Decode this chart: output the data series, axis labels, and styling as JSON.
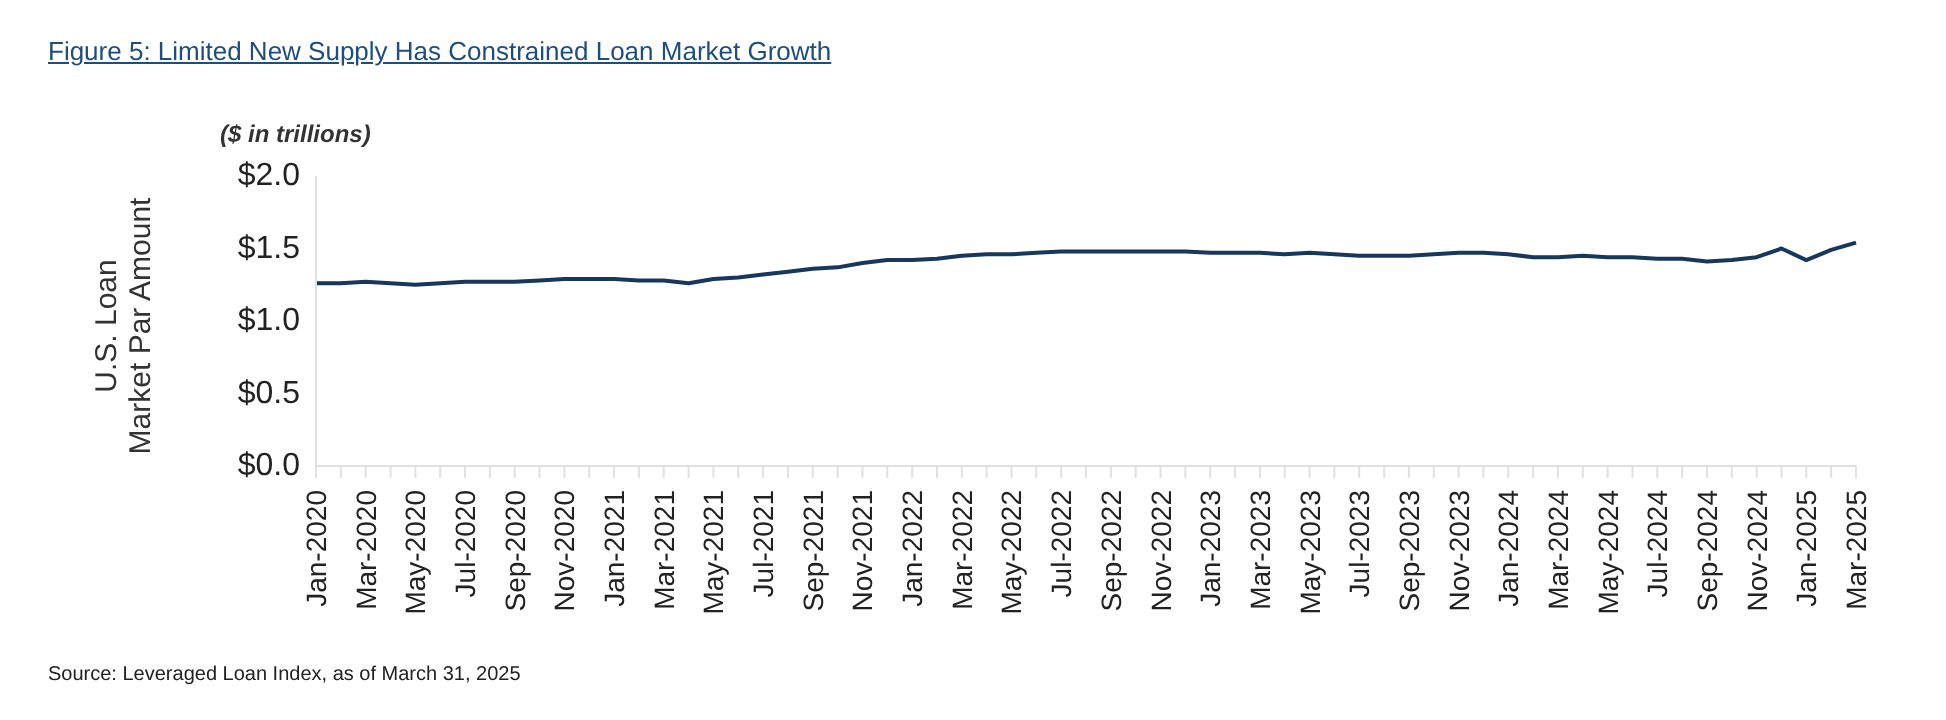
{
  "chart_data": {
    "type": "line",
    "title": "Figure 5: Limited New Supply Has Constrained Loan Market Growth",
    "subtitle": "($ in trillions)",
    "ylabel": "U.S. Loan\nMarket Par Amount",
    "categories": [
      "Jan-2020",
      null,
      "Mar-2020",
      null,
      "May-2020",
      null,
      "Jul-2020",
      null,
      "Sep-2020",
      null,
      "Nov-2020",
      null,
      "Jan-2021",
      null,
      "Mar-2021",
      null,
      "May-2021",
      null,
      "Jul-2021",
      null,
      "Sep-2021",
      null,
      "Nov-2021",
      null,
      "Jan-2022",
      null,
      "Mar-2022",
      null,
      "May-2022",
      null,
      "Jul-2022",
      null,
      "Sep-2022",
      null,
      "Nov-2022",
      null,
      "Jan-2023",
      null,
      "Mar-2023",
      null,
      "May-2023",
      null,
      "Jul-2023",
      null,
      "Sep-2023",
      null,
      "Nov-2023",
      null,
      "Jan-2024",
      null,
      "Mar-2024",
      null,
      "May-2024",
      null,
      "Jul-2024",
      null,
      "Sep-2024",
      null,
      "Nov-2024",
      null,
      "Jan-2025",
      null,
      "Mar-2025"
    ],
    "series": [
      {
        "color": "#17375e",
        "values": [
          1.26,
          1.26,
          1.27,
          1.26,
          1.25,
          1.26,
          1.27,
          1.27,
          1.27,
          1.28,
          1.29,
          1.29,
          1.29,
          1.28,
          1.28,
          1.26,
          1.29,
          1.3,
          1.32,
          1.34,
          1.36,
          1.37,
          1.4,
          1.42,
          1.42,
          1.43,
          1.45,
          1.46,
          1.46,
          1.47,
          1.48,
          1.48,
          1.48,
          1.48,
          1.48,
          1.48,
          1.47,
          1.47,
          1.47,
          1.46,
          1.47,
          1.46,
          1.45,
          1.45,
          1.45,
          1.46,
          1.47,
          1.47,
          1.46,
          1.44,
          1.44,
          1.45,
          1.44,
          1.44,
          1.43,
          1.43,
          1.41,
          1.42,
          1.44,
          1.5,
          1.42,
          1.49,
          1.54
        ]
      }
    ],
    "ylim": [
      0,
      2
    ],
    "yticks": [
      {
        "value": 0,
        "label": "$0.0"
      },
      {
        "value": 0.5,
        "label": "$0.5"
      },
      {
        "value": 1,
        "label": "$1.0"
      },
      {
        "value": 1.5,
        "label": "$1.5"
      },
      {
        "value": 2,
        "label": "$2.0"
      }
    ],
    "grid": false,
    "legend": false,
    "marker": "none",
    "line_style": "solid",
    "annotations": [
      "Source: Leveraged Loan Index, as of March 31, 2025"
    ]
  }
}
